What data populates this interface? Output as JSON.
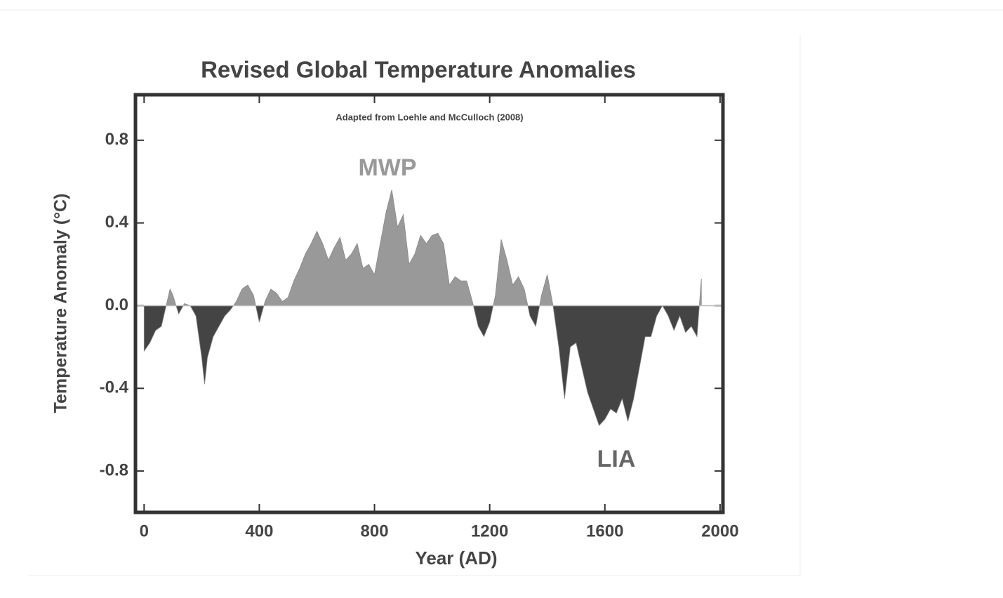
{
  "chart_data": {
    "type": "area",
    "title": "Revised Global Temperature Anomalies",
    "subtitle": "Adapted from Loehle and McCulloch (2008)",
    "x_label": "Year (AD)",
    "y_label": "Temperature Anomaly (°C)",
    "annotations": [
      "MWP",
      "LIA"
    ],
    "x": [
      0,
      20,
      40,
      60,
      80,
      90,
      100,
      120,
      140,
      160,
      180,
      200,
      210,
      220,
      240,
      260,
      280,
      300,
      320,
      340,
      360,
      380,
      400,
      420,
      440,
      460,
      480,
      500,
      520,
      540,
      560,
      580,
      600,
      620,
      640,
      660,
      680,
      700,
      720,
      740,
      760,
      780,
      800,
      820,
      840,
      860,
      880,
      900,
      920,
      940,
      960,
      980,
      1000,
      1020,
      1040,
      1060,
      1080,
      1100,
      1120,
      1140,
      1160,
      1180,
      1200,
      1220,
      1240,
      1260,
      1280,
      1300,
      1320,
      1340,
      1360,
      1380,
      1400,
      1420,
      1440,
      1460,
      1480,
      1500,
      1520,
      1540,
      1560,
      1580,
      1600,
      1620,
      1640,
      1660,
      1680,
      1700,
      1720,
      1740,
      1760,
      1780,
      1800,
      1820,
      1840,
      1860,
      1880,
      1900,
      1920,
      1935
    ],
    "values": [
      -0.22,
      -0.18,
      -0.12,
      -0.1,
      0.02,
      0.08,
      0.05,
      -0.04,
      0.01,
      0.0,
      -0.05,
      -0.25,
      -0.38,
      -0.25,
      -0.15,
      -0.1,
      -0.05,
      -0.02,
      0.02,
      0.08,
      0.1,
      0.05,
      -0.08,
      0.02,
      0.08,
      0.06,
      0.02,
      0.04,
      0.12,
      0.18,
      0.25,
      0.3,
      0.36,
      0.3,
      0.22,
      0.28,
      0.33,
      0.22,
      0.25,
      0.3,
      0.18,
      0.2,
      0.15,
      0.3,
      0.45,
      0.56,
      0.38,
      0.44,
      0.2,
      0.25,
      0.34,
      0.3,
      0.34,
      0.35,
      0.3,
      0.1,
      0.14,
      0.12,
      0.12,
      0.02,
      -0.1,
      -0.15,
      -0.08,
      0.05,
      0.32,
      0.22,
      0.1,
      0.14,
      0.08,
      -0.05,
      -0.1,
      0.05,
      0.15,
      0.0,
      -0.2,
      -0.45,
      -0.2,
      -0.18,
      -0.3,
      -0.42,
      -0.5,
      -0.58,
      -0.55,
      -0.5,
      -0.52,
      -0.45,
      -0.56,
      -0.45,
      -0.3,
      -0.15,
      -0.15,
      -0.05,
      0.0,
      -0.05,
      -0.12,
      -0.05,
      -0.13,
      -0.1,
      -0.15,
      0.13
    ],
    "positive_color": "#999999",
    "negative_color": "#444444",
    "xlim": [
      -30,
      2010
    ],
    "ylim": [
      -1.0,
      1.02
    ],
    "xticks": [
      0,
      400,
      800,
      1200,
      1600,
      2000
    ],
    "yticks": [
      0.8,
      0.4,
      {
        "value": 0,
        "label": "0.0"
      },
      -0.4,
      -0.8
    ]
  }
}
